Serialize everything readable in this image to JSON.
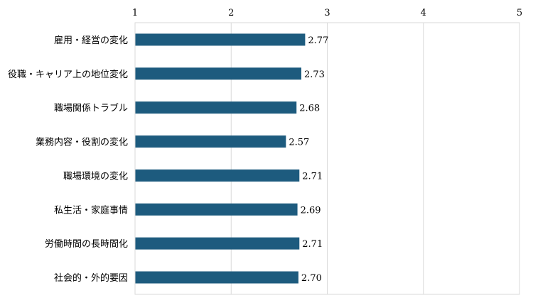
{
  "chart_data": {
    "type": "bar",
    "orientation": "horizontal",
    "categories": [
      "雇用・経営の変化",
      "役職・キャリア上の地位変化",
      "職場関係トラブル",
      "業務内容・役割の変化",
      "職場環境の変化",
      "私生活・家庭事情",
      "労働時間の長時間化",
      "社会的・外的要因"
    ],
    "values": [
      2.77,
      2.73,
      2.68,
      2.57,
      2.71,
      2.69,
      2.71,
      2.7
    ],
    "value_labels": [
      "2.77",
      "2.73",
      "2.68",
      "2.57",
      "2.71",
      "2.69",
      "2.71",
      "2.70"
    ],
    "xlim": [
      1,
      5
    ],
    "xticks": [
      "1",
      "2",
      "3",
      "4",
      "5"
    ],
    "axis_position": "top",
    "grid": true,
    "bar_color": "#1d5b7e",
    "title": "",
    "xlabel": "",
    "ylabel": ""
  }
}
